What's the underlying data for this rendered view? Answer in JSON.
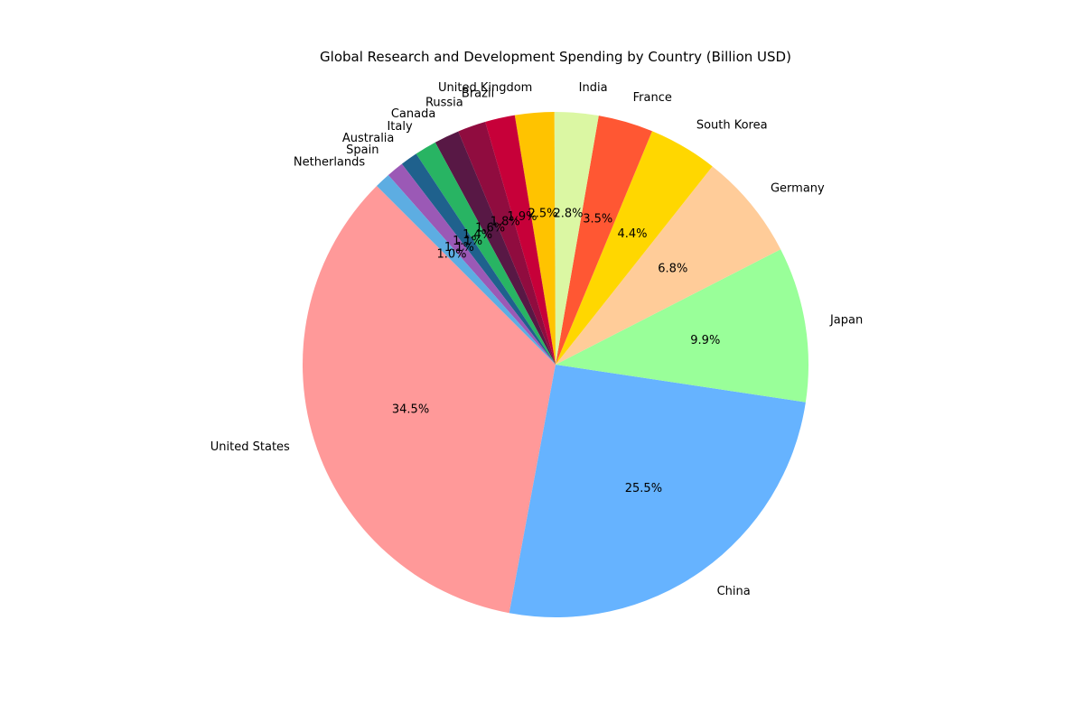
{
  "chart_data": {
    "type": "pie",
    "title": "Global Research and Development Spending by Country (Billion USD)",
    "start_angle_deg": 135,
    "direction": "counterclockwise",
    "slices": [
      {
        "label": "United States",
        "percent": 34.5,
        "percent_label": "34.5%",
        "color": "#ff9999"
      },
      {
        "label": "China",
        "percent": 25.5,
        "percent_label": "25.5%",
        "color": "#66b3ff"
      },
      {
        "label": "Japan",
        "percent": 9.9,
        "percent_label": "9.9%",
        "color": "#99ff99"
      },
      {
        "label": "Germany",
        "percent": 6.8,
        "percent_label": "6.8%",
        "color": "#ffcc99"
      },
      {
        "label": "South Korea",
        "percent": 4.4,
        "percent_label": "4.4%",
        "color": "#ffd700"
      },
      {
        "label": "France",
        "percent": 3.5,
        "percent_label": "3.5%",
        "color": "#ff5733"
      },
      {
        "label": "India",
        "percent": 2.8,
        "percent_label": "2.8%",
        "color": "#dbf7a3"
      },
      {
        "label": "United Kingdom",
        "percent": 2.5,
        "percent_label": "2.5%",
        "color": "#ffc300"
      },
      {
        "label": "Brazil",
        "percent": 1.9,
        "percent_label": "1.9%",
        "color": "#c70039"
      },
      {
        "label": "Russia",
        "percent": 1.8,
        "percent_label": "1.8%",
        "color": "#900c3f"
      },
      {
        "label": "Canada",
        "percent": 1.6,
        "percent_label": "1.6%",
        "color": "#581845"
      },
      {
        "label": "Italy",
        "percent": 1.4,
        "percent_label": "1.4%",
        "color": "#28b463"
      },
      {
        "label": "Australia",
        "percent": 1.1,
        "percent_label": "1.1%",
        "color": "#1f618d"
      },
      {
        "label": "Spain",
        "percent": 1.1,
        "percent_label": "1.1%",
        "color": "#9b59b6"
      },
      {
        "label": "Netherlands",
        "percent": 1.0,
        "percent_label": "1.0%",
        "color": "#5dade2"
      }
    ]
  }
}
